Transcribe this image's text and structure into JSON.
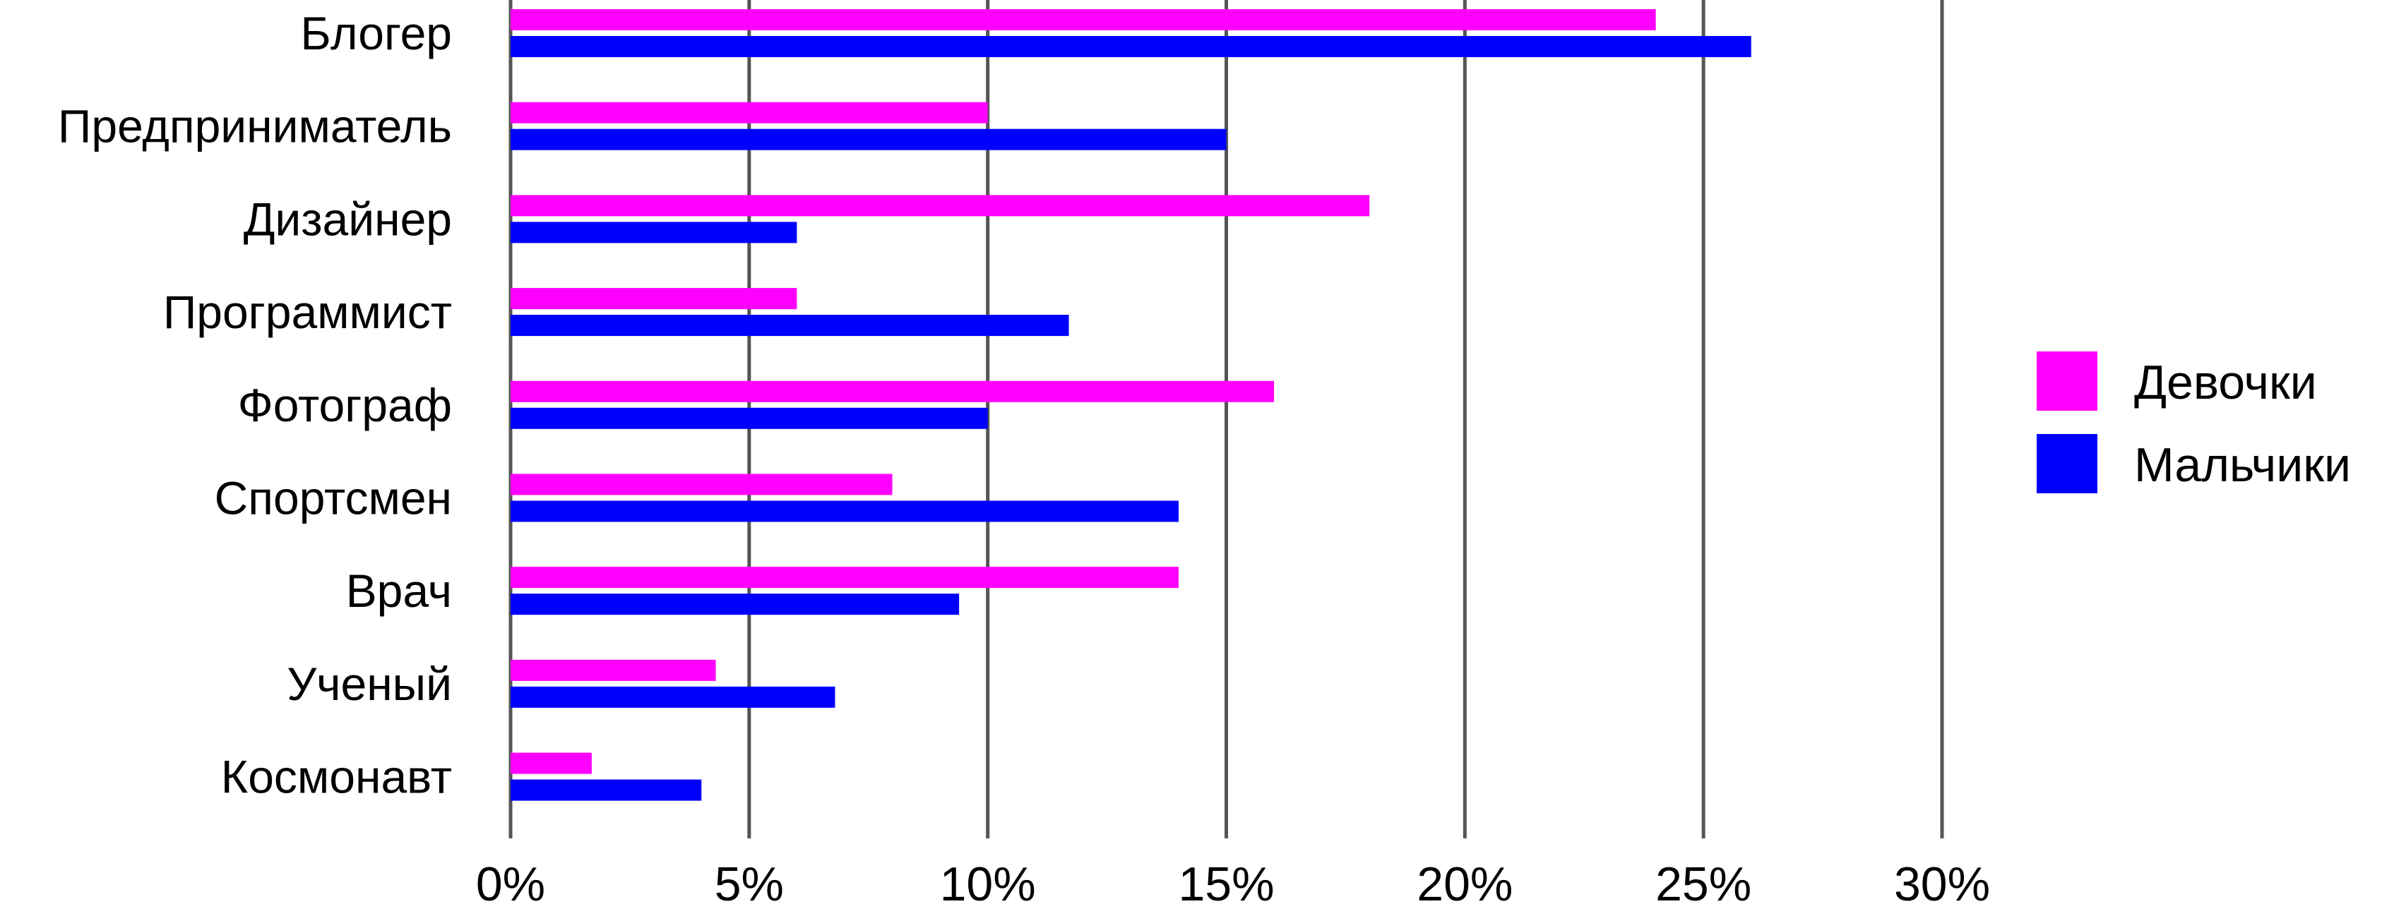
{
  "chart_data": {
    "type": "bar",
    "orientation": "horizontal",
    "title": "",
    "xlabel": "",
    "ylabel": "",
    "categories": [
      "Блогер",
      "Предприниматель",
      "Дизайнер",
      "Программист",
      "Фотограф",
      "Спортсмен",
      "Врач",
      "Ученый",
      "Космонавт"
    ],
    "series": [
      {
        "name": "Девочки",
        "color": "#ff00ff",
        "values": [
          24,
          10,
          18,
          6,
          16,
          8,
          14,
          4.3,
          1.7
        ]
      },
      {
        "name": "Мальчики",
        "color": "#0000ff",
        "values": [
          26,
          15,
          6,
          11.7,
          10,
          14,
          9.4,
          6.8,
          4
        ]
      }
    ],
    "xlim": [
      0,
      30
    ],
    "xticks": [
      0,
      5,
      10,
      15,
      20,
      25,
      30
    ],
    "xtick_labels": [
      "0%",
      "5%",
      "10%",
      "15%",
      "20%",
      "25%",
      "30%"
    ],
    "grid": "vertical",
    "gridline_color": "#555555",
    "legend": "right"
  }
}
